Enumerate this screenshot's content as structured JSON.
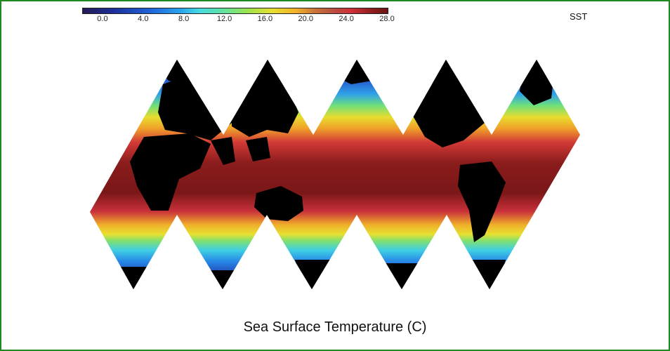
{
  "figure": {
    "title": "Sea Surface Temperature (C)",
    "variable_label": "SST",
    "projection": "icosahedral net (Dymaxion-style), 5 diamond facets",
    "land_color": "#000000",
    "background_color": "#ffffff",
    "frame_color": "#1f8a1f"
  },
  "colorbar": {
    "min": -2.0,
    "max": 28.0,
    "tick_labels": [
      "0.0",
      "4.0",
      "8.0",
      "12.0",
      "16.0",
      "20.0",
      "24.0",
      "28.0"
    ],
    "tick_values": [
      0.0,
      4.0,
      8.0,
      12.0,
      16.0,
      20.0,
      24.0,
      28.0
    ],
    "colormap": [
      "#231a55",
      "#1d2f9a",
      "#1f63d8",
      "#2aa3ee",
      "#45d9e4",
      "#5fe3a0",
      "#9be34f",
      "#e7e030",
      "#f2b12a",
      "#c9763a",
      "#b85040",
      "#d0303a",
      "#8e1d1d",
      "#6a1414"
    ]
  }
}
